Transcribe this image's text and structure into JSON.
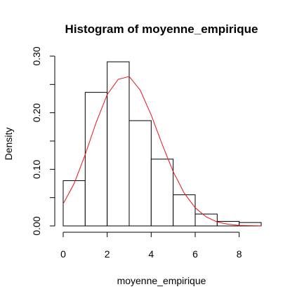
{
  "chart_data": {
    "type": "histogram",
    "title": "Histogram of moyenne_empirique",
    "xlabel": "moyenne_empirique",
    "ylabel": "Density",
    "xlim": [
      0,
      9
    ],
    "ylim": [
      0,
      0.3
    ],
    "x_ticks": [
      0,
      2,
      4,
      6,
      8
    ],
    "x_tick_labels": [
      "0",
      "2",
      "4",
      "6",
      "8"
    ],
    "y_ticks": [
      0.0,
      0.1,
      0.2,
      0.3
    ],
    "y_tick_labels": [
      "0.00",
      "0.10",
      "0.20",
      "0.30"
    ],
    "bins": [
      {
        "from": 0,
        "to": 1,
        "density": 0.08
      },
      {
        "from": 1,
        "to": 2,
        "density": 0.236
      },
      {
        "from": 2,
        "to": 3,
        "density": 0.29
      },
      {
        "from": 3,
        "to": 4,
        "density": 0.186
      },
      {
        "from": 4,
        "to": 5,
        "density": 0.118
      },
      {
        "from": 5,
        "to": 6,
        "density": 0.055
      },
      {
        "from": 6,
        "to": 7,
        "density": 0.021
      },
      {
        "from": 7,
        "to": 8,
        "density": 0.008
      },
      {
        "from": 8,
        "to": 9,
        "density": 0.006
      }
    ],
    "density_curve": {
      "color": "#e8141a",
      "points": [
        [
          0.0,
          0.039
        ],
        [
          0.5,
          0.075
        ],
        [
          1.0,
          0.126
        ],
        [
          1.5,
          0.183
        ],
        [
          2.0,
          0.232
        ],
        [
          2.5,
          0.259
        ],
        [
          3.0,
          0.264
        ],
        [
          3.5,
          0.24
        ],
        [
          4.0,
          0.196
        ],
        [
          4.5,
          0.144
        ],
        [
          5.0,
          0.096
        ],
        [
          5.5,
          0.058
        ],
        [
          6.0,
          0.032
        ],
        [
          6.5,
          0.016
        ],
        [
          7.0,
          0.007
        ],
        [
          7.5,
          0.003
        ],
        [
          8.0,
          0.001
        ],
        [
          8.5,
          0.0005
        ],
        [
          9.0,
          0.0002
        ]
      ]
    },
    "grid": false
  }
}
